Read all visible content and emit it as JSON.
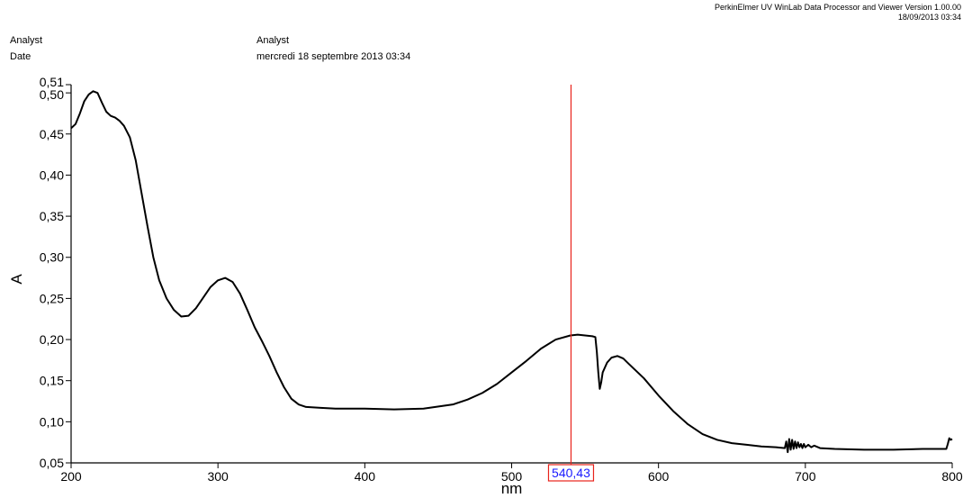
{
  "header": {
    "software": "PerkinElmer UV WinLab Data Processor and Viewer Version 1.00.00",
    "timestamp": "18/09/2013 03:34"
  },
  "meta": {
    "analyst_label": "Analyst",
    "analyst_value": "Analyst",
    "date_label": "Date",
    "date_value": "mercredi 18 septembre 2013 03:34"
  },
  "colors": {
    "curve": "#000000",
    "cursor_line": "#e8231c",
    "cursor_box": "#e8231c",
    "cursor_text": "#1a1aff"
  },
  "chart_data": {
    "type": "line",
    "title": "",
    "xlabel": "nm",
    "ylabel": "A",
    "xlim": [
      200,
      800
    ],
    "ylim": [
      0.05,
      0.51
    ],
    "xticks": [
      200,
      300,
      400,
      500,
      600,
      700,
      800
    ],
    "xtick_labels": [
      "200",
      "300",
      "400",
      "500",
      "600",
      "700",
      "800"
    ],
    "yticks": [
      0.05,
      0.1,
      0.15,
      0.2,
      0.25,
      0.3,
      0.35,
      0.4,
      0.45,
      0.5,
      0.51
    ],
    "ytick_labels": [
      "0,05",
      "0,10",
      "0,15",
      "0,20",
      "0,25",
      "0,30",
      "0,35",
      "0,40",
      "0,45",
      "0,50",
      "0,51"
    ],
    "grid": false,
    "cursor": {
      "x": 540.43,
      "label": "540,43"
    },
    "series": [
      {
        "values": [
          [
            200,
            0.457
          ],
          [
            203,
            0.462
          ],
          [
            206,
            0.475
          ],
          [
            209,
            0.49
          ],
          [
            212,
            0.498
          ],
          [
            215,
            0.502
          ],
          [
            218,
            0.5
          ],
          [
            221,
            0.488
          ],
          [
            224,
            0.477
          ],
          [
            227,
            0.472
          ],
          [
            230,
            0.47
          ],
          [
            233,
            0.466
          ],
          [
            236,
            0.46
          ],
          [
            240,
            0.446
          ],
          [
            244,
            0.418
          ],
          [
            248,
            0.378
          ],
          [
            252,
            0.338
          ],
          [
            256,
            0.3
          ],
          [
            260,
            0.272
          ],
          [
            265,
            0.25
          ],
          [
            270,
            0.236
          ],
          [
            275,
            0.228
          ],
          [
            280,
            0.229
          ],
          [
            285,
            0.238
          ],
          [
            290,
            0.251
          ],
          [
            295,
            0.264
          ],
          [
            300,
            0.272
          ],
          [
            305,
            0.275
          ],
          [
            310,
            0.27
          ],
          [
            315,
            0.256
          ],
          [
            320,
            0.236
          ],
          [
            325,
            0.215
          ],
          [
            330,
            0.198
          ],
          [
            335,
            0.18
          ],
          [
            340,
            0.16
          ],
          [
            345,
            0.142
          ],
          [
            350,
            0.128
          ],
          [
            355,
            0.121
          ],
          [
            360,
            0.118
          ],
          [
            370,
            0.117
          ],
          [
            380,
            0.116
          ],
          [
            390,
            0.116
          ],
          [
            400,
            0.116
          ],
          [
            420,
            0.115
          ],
          [
            440,
            0.116
          ],
          [
            460,
            0.121
          ],
          [
            470,
            0.127
          ],
          [
            480,
            0.135
          ],
          [
            490,
            0.146
          ],
          [
            500,
            0.16
          ],
          [
            510,
            0.174
          ],
          [
            520,
            0.189
          ],
          [
            530,
            0.2
          ],
          [
            540,
            0.205
          ],
          [
            545,
            0.206
          ],
          [
            550,
            0.205
          ],
          [
            555,
            0.204
          ],
          [
            557,
            0.203
          ],
          [
            558,
            0.185
          ],
          [
            559,
            0.16
          ],
          [
            560,
            0.14
          ],
          [
            561,
            0.148
          ],
          [
            562,
            0.16
          ],
          [
            565,
            0.172
          ],
          [
            568,
            0.178
          ],
          [
            572,
            0.18
          ],
          [
            576,
            0.177
          ],
          [
            580,
            0.17
          ],
          [
            590,
            0.153
          ],
          [
            600,
            0.132
          ],
          [
            610,
            0.113
          ],
          [
            620,
            0.097
          ],
          [
            630,
            0.085
          ],
          [
            640,
            0.078
          ],
          [
            650,
            0.074
          ],
          [
            660,
            0.072
          ],
          [
            670,
            0.07
          ],
          [
            680,
            0.069
          ],
          [
            686,
            0.068
          ],
          [
            687,
            0.076
          ],
          [
            688,
            0.063
          ],
          [
            689,
            0.079
          ],
          [
            690,
            0.066
          ],
          [
            691,
            0.078
          ],
          [
            692,
            0.067
          ],
          [
            693,
            0.076
          ],
          [
            694,
            0.068
          ],
          [
            695,
            0.075
          ],
          [
            696,
            0.069
          ],
          [
            697,
            0.073
          ],
          [
            698,
            0.068
          ],
          [
            699,
            0.073
          ],
          [
            700,
            0.069
          ],
          [
            702,
            0.072
          ],
          [
            704,
            0.069
          ],
          [
            706,
            0.071
          ],
          [
            710,
            0.068
          ],
          [
            720,
            0.067
          ],
          [
            740,
            0.066
          ],
          [
            760,
            0.066
          ],
          [
            780,
            0.067
          ],
          [
            796,
            0.067
          ],
          [
            797,
            0.073
          ],
          [
            798,
            0.08
          ],
          [
            799,
            0.078
          ],
          [
            800,
            0.079
          ]
        ]
      }
    ]
  }
}
